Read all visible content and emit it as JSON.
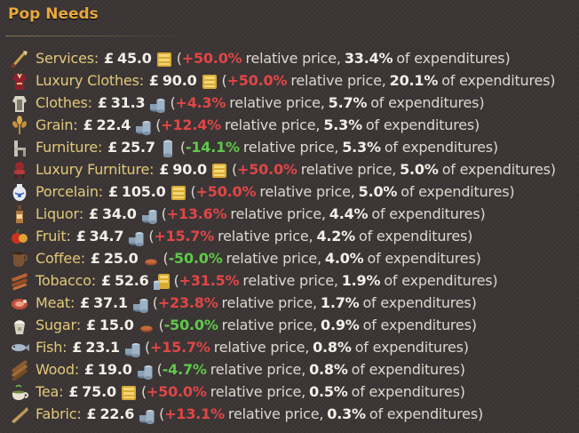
{
  "panel": {
    "title": "Pop Needs"
  },
  "labels": {
    "currency": "£",
    "relative_price": "relative price,",
    "of_expenditures": "of expenditures)",
    "open_paren": "(",
    "colon": ":"
  },
  "colors": {
    "title": "#e8a93e",
    "name": "#e3c87a",
    "increase": "#e04646",
    "decrease": "#5fc84a"
  },
  "needs": [
    {
      "name": "Services",
      "price": "45.0",
      "change": "+50.0%",
      "share": "33.4%",
      "icon": "services-icon",
      "coin": "gold"
    },
    {
      "name": "Luxury Clothes",
      "price": "90.0",
      "change": "+50.0%",
      "share": "20.1%",
      "icon": "luxury-clothes-icon",
      "coin": "gold"
    },
    {
      "name": "Clothes",
      "price": "31.3",
      "change": "+4.3%",
      "share": "5.7%",
      "icon": "clothes-icon",
      "coin": "silver"
    },
    {
      "name": "Grain",
      "price": "22.4",
      "change": "+12.4%",
      "share": "5.3%",
      "icon": "grain-icon",
      "coin": "silver"
    },
    {
      "name": "Furniture",
      "price": "25.7",
      "change": "-14.1%",
      "share": "5.3%",
      "icon": "furniture-icon",
      "coin": "silver-single"
    },
    {
      "name": "Luxury Furniture",
      "price": "90.0",
      "change": "+50.0%",
      "share": "5.0%",
      "icon": "luxury-furniture-icon",
      "coin": "gold"
    },
    {
      "name": "Porcelain",
      "price": "105.0",
      "change": "+50.0%",
      "share": "5.0%",
      "icon": "porcelain-icon",
      "coin": "gold"
    },
    {
      "name": "Liquor",
      "price": "34.0",
      "change": "+13.6%",
      "share": "4.4%",
      "icon": "liquor-icon",
      "coin": "silver"
    },
    {
      "name": "Fruit",
      "price": "34.7",
      "change": "+15.7%",
      "share": "4.2%",
      "icon": "fruit-icon",
      "coin": "silver"
    },
    {
      "name": "Coffee",
      "price": "25.0",
      "change": "-50.0%",
      "share": "4.0%",
      "icon": "coffee-icon",
      "coin": "copper"
    },
    {
      "name": "Tobacco",
      "price": "52.6",
      "change": "+31.5%",
      "share": "1.9%",
      "icon": "tobacco-icon",
      "coin": "gold-silver"
    },
    {
      "name": "Meat",
      "price": "37.1",
      "change": "+23.8%",
      "share": "1.7%",
      "icon": "meat-icon",
      "coin": "silver"
    },
    {
      "name": "Sugar",
      "price": "15.0",
      "change": "-50.0%",
      "share": "0.9%",
      "icon": "sugar-icon",
      "coin": "copper"
    },
    {
      "name": "Fish",
      "price": "23.1",
      "change": "+15.7%",
      "share": "0.8%",
      "icon": "fish-icon",
      "coin": "silver"
    },
    {
      "name": "Wood",
      "price": "19.0",
      "change": "-4.7%",
      "share": "0.8%",
      "icon": "wood-icon",
      "coin": "silver"
    },
    {
      "name": "Tea",
      "price": "75.0",
      "change": "+50.0%",
      "share": "0.5%",
      "icon": "tea-icon",
      "coin": "gold"
    },
    {
      "name": "Fabric",
      "price": "22.6",
      "change": "+13.1%",
      "share": "0.3%",
      "icon": "fabric-icon",
      "coin": "silver"
    }
  ]
}
